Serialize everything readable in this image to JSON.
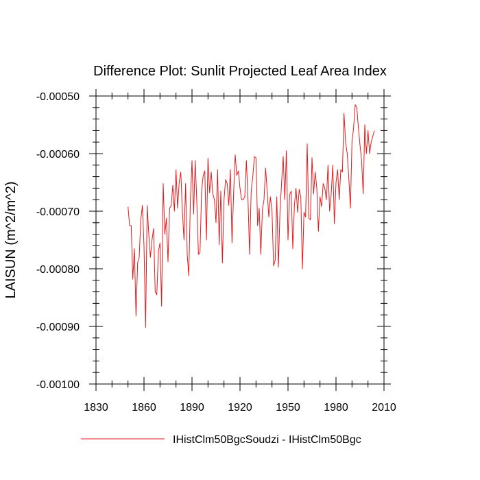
{
  "chart_data": {
    "type": "line",
    "title": "Difference Plot: Sunlit Projected Leaf Area Index",
    "xlabel": "",
    "ylabel": "LAISUN  (m^2/m^2)",
    "xlim": [
      1830,
      2010
    ],
    "ylim": [
      -0.001,
      -0.0005
    ],
    "xticks": [
      1830,
      1860,
      1890,
      1920,
      1950,
      1980,
      2010
    ],
    "xtick_labels": [
      "1830",
      "1860",
      "1890",
      "1920",
      "1950",
      "1980",
      "2010"
    ],
    "yticks": [
      -0.001,
      -0.0009,
      -0.0008,
      -0.0007,
      -0.0006,
      -0.0005
    ],
    "ytick_labels": [
      "-0.00100",
      "-0.00090",
      "-0.00080",
      "-0.00070",
      "-0.00060",
      "-0.00050"
    ],
    "grid": false,
    "legend_position": "bottom",
    "series": [
      {
        "name": "IHistClm50BgcSoudzi - IHistClm50Bgc",
        "color": "#e41a1c",
        "x_start": 1850,
        "x_step": 1,
        "values": [
          -0.000692,
          -0.000725,
          -0.000725,
          -0.000818,
          -0.000765,
          -0.000882,
          -0.00079,
          -0.00078,
          -0.000715,
          -0.00069,
          -0.00076,
          -0.000902,
          -0.00069,
          -0.00074,
          -0.00078,
          -0.00075,
          -0.00073,
          -0.00084,
          -0.000845,
          -0.00077,
          -0.000755,
          -0.000865,
          -0.000652,
          -0.00074,
          -0.000712,
          -0.000788,
          -0.000695,
          -0.00069,
          -0.000655,
          -0.0007,
          -0.000628,
          -0.000695,
          -0.00065,
          -0.000632,
          -0.0007,
          -0.00075,
          -0.000652,
          -0.000775,
          -0.000812,
          -0.00068,
          -0.000612,
          -0.000705,
          -0.000612,
          -0.000682,
          -0.000775,
          -0.000772,
          -0.000665,
          -0.000638,
          -0.00063,
          -0.00075,
          -0.000608,
          -0.000668,
          -0.000632,
          -0.00067,
          -0.00068,
          -0.00072,
          -0.000628,
          -0.000758,
          -0.000665,
          -0.00079,
          -0.00068,
          -0.000645,
          -0.000652,
          -0.00069,
          -0.000628,
          -0.000755,
          -0.00067,
          -0.000602,
          -0.000638,
          -0.00063,
          -0.00066,
          -0.00068,
          -0.00068,
          -0.000675,
          -0.000612,
          -0.00068,
          -0.000775,
          -0.000665,
          -0.00064,
          -0.000605,
          -0.000608,
          -0.000725,
          -0.000695,
          -0.000775,
          -0.000698,
          -0.00068,
          -0.000625,
          -0.000665,
          -0.00071,
          -0.000675,
          -0.0007,
          -0.000795,
          -0.000785,
          -0.000675,
          -0.000797,
          -0.0007,
          -0.00065,
          -0.000605,
          -0.00068,
          -0.000595,
          -0.00075,
          -0.000672,
          -0.000665,
          -0.000765,
          -0.00069,
          -0.00066,
          -0.000702,
          -0.000662,
          -0.000675,
          -0.0008,
          -0.000702,
          -0.00071,
          -0.000583,
          -0.000712,
          -0.000715,
          -0.000607,
          -0.00067,
          -0.000632,
          -0.00066,
          -0.000735,
          -0.000675,
          -0.000692,
          -0.000652,
          -0.00066,
          -0.00068,
          -0.00062,
          -0.0007,
          -0.00067,
          -0.00062,
          -0.000722,
          -0.00065,
          -0.000628,
          -0.00068,
          -0.000628,
          -0.000632,
          -0.00053,
          -0.00058,
          -0.0006,
          -0.000642,
          -0.000695,
          -0.00058,
          -0.000555,
          -0.000515,
          -0.00052,
          -0.000555,
          -0.000585,
          -0.000612,
          -0.00067,
          -0.00055,
          -0.0006,
          -0.00056,
          -0.0006,
          -0.00058,
          -0.00057,
          -0.00056
        ]
      }
    ]
  }
}
